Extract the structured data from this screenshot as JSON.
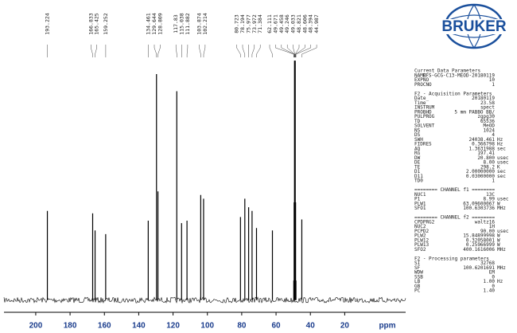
{
  "chart_data": {
    "type": "stem",
    "x_label": "ppm",
    "x": [
      193.224,
      166.833,
      165.425,
      159.252,
      134.461,
      129.644,
      128.809,
      117.83,
      115.038,
      111.882,
      103.874,
      102.214,
      80.723,
      78.194,
      75.977,
      73.972,
      71.384,
      62.111,
      49.671,
      49.458,
      49.246,
      49.033,
      48.821,
      48.606,
      48.394,
      44.987
    ],
    "values": [
      36.5,
      35.5,
      28.5,
      27,
      32.5,
      92.5,
      44.5,
      85.5,
      31.5,
      32.5,
      43,
      41.5,
      34,
      41.5,
      38,
      36.5,
      29.5,
      28.5,
      8,
      40,
      98,
      98,
      98,
      40,
      8,
      33
    ],
    "color": "#000000",
    "xlim": [
      218.5,
      -15.5
    ],
    "xticks": [
      200,
      180,
      160,
      140,
      120,
      100,
      80,
      60,
      40,
      20
    ],
    "ylim": [
      -5,
      100
    ]
  },
  "logo": "BRUKER",
  "parameters": [
    {
      "title": "Current Data Parameters",
      "rows": [
        {
          "key": "NAME",
          "value": "RFS-GCG-C13-MEOD-20180119"
        },
        {
          "key": "EXPNO",
          "value": "10"
        },
        {
          "key": "PROCNO",
          "value": "1"
        }
      ]
    },
    {
      "title": "F2 - Acquisition Parameters",
      "rows": [
        {
          "key": "Date_",
          "value": "20180119"
        },
        {
          "key": "Time",
          "value": "23.58"
        },
        {
          "key": "INSTRUM",
          "value": "spect"
        },
        {
          "key": "PROBHD",
          "value": "5 mm PABBO BB/"
        },
        {
          "key": "PULPROG",
          "value": "zgpg30"
        },
        {
          "key": "TD",
          "value": "65536"
        },
        {
          "key": "SOLVENT",
          "value": "MeOD"
        },
        {
          "key": "NS",
          "value": "1024"
        },
        {
          "key": "DS",
          "value": "4"
        },
        {
          "key": "SWH",
          "value": "24038.461",
          "unit": "Hz"
        },
        {
          "key": "FIDRES",
          "value": "0.366798",
          "unit": "Hz"
        },
        {
          "key": "AQ",
          "value": "1.3631988",
          "unit": "sec"
        },
        {
          "key": "RG",
          "value": "197.41"
        },
        {
          "key": "DW",
          "value": "20.800",
          "unit": "usec"
        },
        {
          "key": "DE",
          "value": "8.00",
          "unit": "usec"
        },
        {
          "key": "TE",
          "value": "298.2",
          "unit": "K"
        },
        {
          "key": "D1",
          "value": "2.00000000",
          "unit": "sec"
        },
        {
          "key": "D11",
          "value": "0.03000000",
          "unit": "sec"
        },
        {
          "key": "TD0",
          "value": "1"
        }
      ]
    },
    {
      "title": "======== CHANNEL f1 ========",
      "rows": [
        {
          "key": "NUC1",
          "value": "13C"
        },
        {
          "key": "P1",
          "value": "8.99",
          "unit": "usec"
        },
        {
          "key": "PLW1",
          "value": "63.09600067",
          "unit": "W"
        },
        {
          "key": "SFO1",
          "value": "100.6303736",
          "unit": "MHz"
        }
      ]
    },
    {
      "title": "======== CHANNEL f2 ========",
      "rows": [
        {
          "key": "CPDPRG2",
          "value": "waltz16"
        },
        {
          "key": "NUC2",
          "value": "1H"
        },
        {
          "key": "PCPD2",
          "value": "90.00",
          "unit": "usec"
        },
        {
          "key": "PLW2",
          "value": "15.84899998",
          "unit": "W"
        },
        {
          "key": "PLW12",
          "value": "0.32058001",
          "unit": "W"
        },
        {
          "key": "PLW13",
          "value": "0.25966999",
          "unit": "W"
        },
        {
          "key": "SFO2",
          "value": "400.1616006",
          "unit": "MHz"
        }
      ]
    },
    {
      "title": "F2 - Processing parameters",
      "rows": [
        {
          "key": "SI",
          "value": "32768"
        },
        {
          "key": "SF",
          "value": "100.6201691",
          "unit": "MHz"
        },
        {
          "key": "WDW",
          "value": "EM"
        },
        {
          "key": "SSB",
          "value": "0"
        },
        {
          "key": "LB",
          "value": "1.00",
          "unit": "Hz"
        },
        {
          "key": "GB",
          "value": "0"
        },
        {
          "key": "PC",
          "value": "1.40"
        }
      ]
    }
  ]
}
